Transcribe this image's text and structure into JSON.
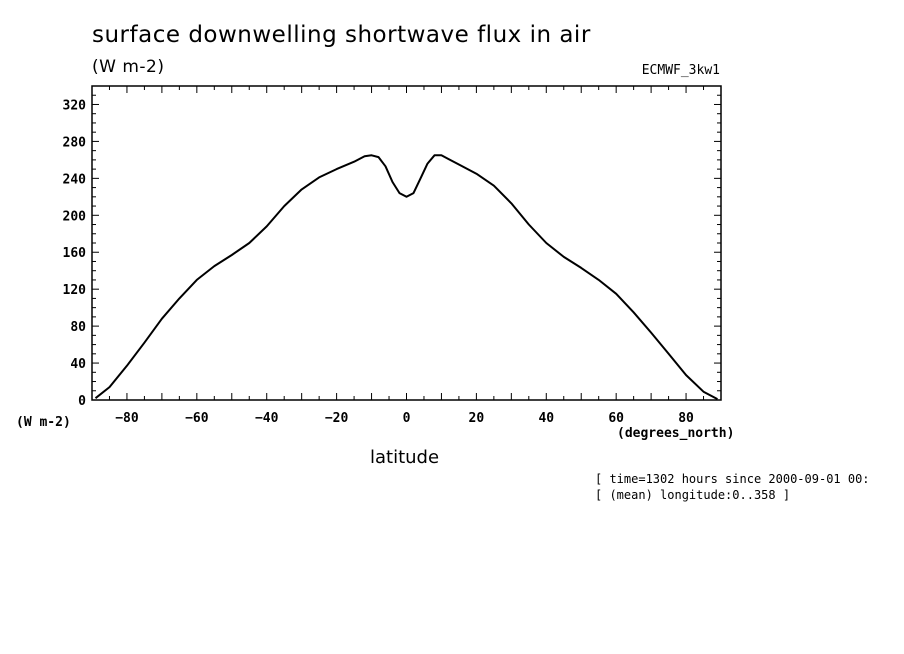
{
  "header": {
    "title": "surface downwelling shortwave flux in air",
    "units": "(W m-2)",
    "dataset": "ECMWF_3kw1"
  },
  "axes": {
    "y_units_label": "(W m-2)",
    "x_units_label": "(degrees_north)",
    "x_label": "latitude"
  },
  "footer": {
    "line1": "[ time=1302 hours since 2000-09-01 00:",
    "line2": "[ (mean) longitude:0..358 ]"
  },
  "chart_data": {
    "type": "line",
    "title": "surface downwelling shortwave flux in air",
    "xlabel": "latitude",
    "ylabel": "(W m-2)",
    "xlim": [
      -90,
      90
    ],
    "ylim": [
      0,
      340
    ],
    "xticks": [
      -80,
      -60,
      -40,
      -20,
      0,
      20,
      40,
      60,
      80
    ],
    "yticks": [
      0,
      40,
      80,
      120,
      160,
      200,
      240,
      280,
      320
    ],
    "grid": false,
    "series": [
      {
        "x": [
          -89,
          -85,
          -80,
          -75,
          -70,
          -65,
          -60,
          -55,
          -50,
          -45,
          -40,
          -35,
          -30,
          -25,
          -20,
          -15,
          -12,
          -10,
          -8,
          -6,
          -4,
          -2,
          0,
          2,
          4,
          6,
          8,
          10,
          12,
          15,
          20,
          25,
          30,
          35,
          40,
          45,
          50,
          55,
          60,
          65,
          70,
          75,
          80,
          85,
          89
        ],
        "y": [
          2,
          14,
          37,
          62,
          88,
          110,
          130,
          145,
          157,
          170,
          188,
          210,
          228,
          241,
          250,
          258,
          264,
          265,
          263,
          253,
          236,
          224,
          220,
          224,
          240,
          256,
          265,
          265,
          261,
          255,
          245,
          232,
          213,
          190,
          170,
          155,
          143,
          130,
          115,
          95,
          73,
          50,
          27,
          9,
          1
        ]
      }
    ]
  }
}
